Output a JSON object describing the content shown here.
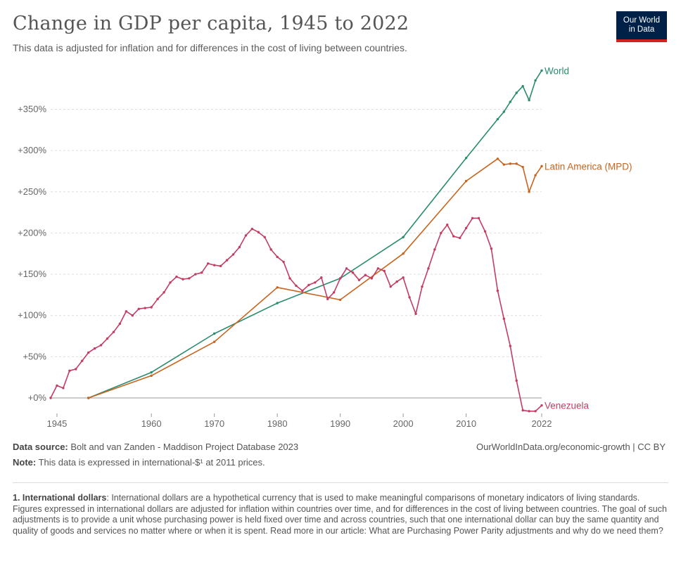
{
  "header": {
    "title": "Change in GDP per capita, 1945 to 2022",
    "subtitle": "This data is adjusted for inflation and for differences in the cost of living between countries.",
    "logo_line1": "Our World",
    "logo_line2": "in Data"
  },
  "footer": {
    "source_label": "Data source:",
    "source_text": " Bolt and van Zanden - Maddison Project Database 2023",
    "credit": "OurWorldInData.org/economic-growth | CC BY",
    "note_label": "Note:",
    "note_text": " This data is expressed in international-$¹ at 2011 prices.",
    "footnote_label": "1. International dollars",
    "footnote_text": ": International dollars are a hypothetical currency that is used to make meaningful comparisons of monetary indicators of living standards. Figures expressed in international dollars are adjusted for inflation within countries over time, and for differences in the cost of living between countries. The goal of such adjustments is to provide a unit whose purchasing power is held fixed over time and across countries, such that one international dollar can buy the same quantity and quality of goods and services no matter where or when it is spent. Read more in our article: What are Purchasing Power Parity adjustments and why do we need them?"
  },
  "colors": {
    "world": "#2a8c6e",
    "latin_america": "#c8641e",
    "venezuela": "#c33d63",
    "grid": "#dddddd",
    "zero_line": "#999999"
  },
  "chart_data": {
    "type": "line",
    "title": "Change in GDP per capita, 1945 to 2022",
    "xlabel": "",
    "ylabel": "",
    "xlim": [
      1944,
      2022
    ],
    "ylim": [
      -15,
      400
    ],
    "x_ticks": [
      {
        "value": 1945,
        "label": "1945"
      },
      {
        "value": 1960,
        "label": "1960"
      },
      {
        "value": 1970,
        "label": "1970"
      },
      {
        "value": 1980,
        "label": "1980"
      },
      {
        "value": 1990,
        "label": "1990"
      },
      {
        "value": 2000,
        "label": "2000"
      },
      {
        "value": 2010,
        "label": "2010"
      },
      {
        "value": 2022,
        "label": "2022"
      }
    ],
    "y_ticks": [
      {
        "value": 0,
        "label": "+0%"
      },
      {
        "value": 50,
        "label": "+50%"
      },
      {
        "value": 100,
        "label": "+100%"
      },
      {
        "value": 150,
        "label": "+150%"
      },
      {
        "value": 200,
        "label": "+200%"
      },
      {
        "value": 250,
        "label": "+250%"
      },
      {
        "value": 300,
        "label": "+300%"
      },
      {
        "value": 350,
        "label": "+350%"
      }
    ],
    "series": [
      {
        "name": "World",
        "key": "world",
        "x": [
          1950,
          1960,
          1970,
          1980,
          1990,
          2000,
          2010,
          2015,
          2016,
          2017,
          2018,
          2019,
          2020,
          2021,
          2022
        ],
        "y": [
          0,
          31,
          78,
          115,
          145,
          195,
          291,
          338,
          347,
          359,
          370,
          378,
          361,
          385,
          397
        ]
      },
      {
        "name": "Latin America (MPD)",
        "key": "latin_america",
        "x": [
          1950,
          1960,
          1970,
          1980,
          1990,
          2000,
          2010,
          2015,
          2016,
          2017,
          2018,
          2019,
          2020,
          2021,
          2022
        ],
        "y": [
          0,
          27,
          68,
          134,
          119,
          175,
          263,
          290,
          283,
          284,
          284,
          280,
          250,
          270,
          281
        ]
      },
      {
        "name": "Venezuela",
        "key": "venezuela",
        "x": [
          1944,
          1945,
          1946,
          1947,
          1948,
          1949,
          1950,
          1951,
          1952,
          1953,
          1954,
          1955,
          1956,
          1957,
          1958,
          1959,
          1960,
          1961,
          1962,
          1963,
          1964,
          1965,
          1966,
          1967,
          1968,
          1969,
          1970,
          1971,
          1972,
          1973,
          1974,
          1975,
          1976,
          1977,
          1978,
          1979,
          1980,
          1981,
          1982,
          1983,
          1984,
          1985,
          1986,
          1987,
          1988,
          1989,
          1990,
          1991,
          1992,
          1993,
          1994,
          1995,
          1996,
          1997,
          1998,
          1999,
          2000,
          2001,
          2002,
          2003,
          2004,
          2005,
          2006,
          2007,
          2008,
          2009,
          2010,
          2011,
          2012,
          2013,
          2014,
          2015,
          2016,
          2017,
          2018,
          2019,
          2020,
          2021,
          2022
        ],
        "y": [
          0,
          15,
          12,
          33,
          35,
          45,
          55,
          60,
          64,
          72,
          80,
          90,
          105,
          100,
          108,
          109,
          110,
          120,
          128,
          140,
          147,
          144,
          145,
          150,
          152,
          163,
          161,
          160,
          167,
          174,
          183,
          197,
          205,
          201,
          195,
          180,
          171,
          165,
          145,
          136,
          130,
          137,
          140,
          146,
          120,
          128,
          145,
          157,
          152,
          143,
          149,
          145,
          157,
          154,
          135,
          141,
          146,
          122,
          102,
          135,
          157,
          180,
          200,
          210,
          196,
          194,
          206,
          218,
          218,
          202,
          181,
          130,
          96,
          63,
          21,
          -15,
          -16,
          -16,
          -9
        ]
      }
    ]
  }
}
